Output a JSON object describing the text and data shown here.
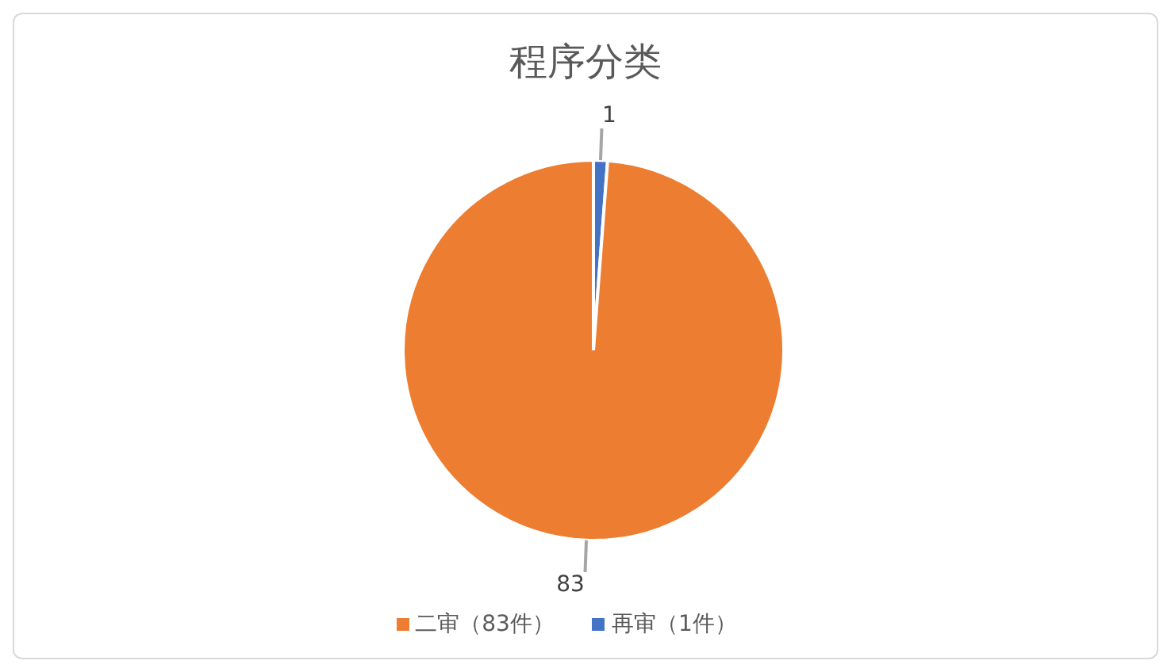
{
  "chart_data": {
    "type": "pie",
    "title": "程序分类",
    "categories": [
      "再审（1件）",
      "二审（83件）"
    ],
    "values": [
      1,
      83
    ],
    "colors": [
      "#4472c4",
      "#ed7d31"
    ],
    "data_labels": true,
    "legend": "bottom"
  }
}
